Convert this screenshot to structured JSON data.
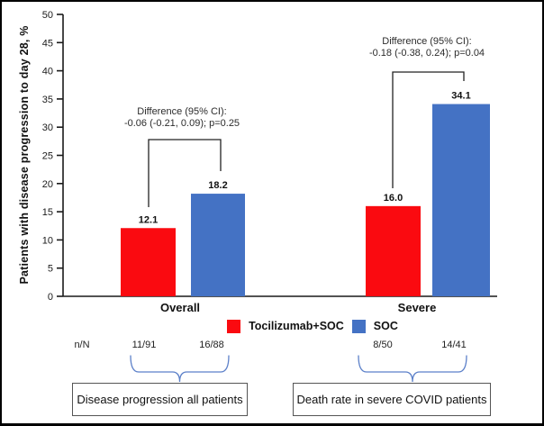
{
  "chart_data": {
    "type": "bar",
    "title": "",
    "ylabel": "Patients with disease progression to day 28, %",
    "xlabel": "",
    "ylim": [
      0,
      50
    ],
    "yticks": [
      0,
      5,
      10,
      15,
      20,
      25,
      30,
      35,
      40,
      45,
      50
    ],
    "grid": false,
    "legend_position": "bottom",
    "categories": [
      "Overall",
      "Severe"
    ],
    "series": [
      {
        "name": "Tocilizumab+SOC",
        "color": "#FA0A10",
        "values": [
          12.1,
          16.0
        ]
      },
      {
        "name": "SOC",
        "color": "#4472C4",
        "values": [
          18.2,
          34.1
        ]
      }
    ],
    "annotations": [
      {
        "group": "Overall",
        "line1": "Difference (95% CI):",
        "line2": "-0.06 (-0.21, 0.09); p=0.25"
      },
      {
        "group": "Severe",
        "line1": "Difference (95% CI):",
        "line2": "-0.18 (-0.38, 0.24); p=0.04"
      }
    ]
  },
  "counts": {
    "row_label": "n/N",
    "values": [
      "11/91",
      "16/88",
      "8/50",
      "14/41"
    ]
  },
  "callouts": [
    {
      "label": "Disease progression all patients"
    },
    {
      "label": "Death rate in severe COVID patients"
    }
  ],
  "colors": {
    "tocilizumab_red": "#FA0A10",
    "soc_blue": "#4472C4",
    "brace_blue": "#5C80C9",
    "box_border": "#555555",
    "axis_black": "#1a1a1a"
  }
}
